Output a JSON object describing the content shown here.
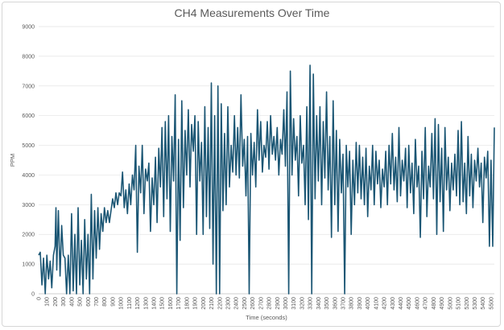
{
  "chart_data": {
    "type": "line",
    "title": "CH4 Measurements Over Time",
    "xlabel": "Time (seconds)",
    "ylabel": "PPM",
    "xlim": [
      0,
      5540
    ],
    "ylim": [
      0,
      9000
    ],
    "yticks": [
      0,
      1000,
      2000,
      3000,
      4000,
      5000,
      6000,
      7000,
      8000,
      9000
    ],
    "xticks": [
      0,
      100,
      200,
      300,
      400,
      500,
      600,
      700,
      800,
      900,
      1000,
      1100,
      1200,
      1300,
      1400,
      1500,
      1600,
      1700,
      1800,
      1900,
      2000,
      2100,
      2200,
      2300,
      2400,
      2500,
      2600,
      2700,
      2800,
      2900,
      3000,
      3100,
      3200,
      3300,
      3400,
      3500,
      3600,
      3700,
      3800,
      3900,
      4000,
      4100,
      4200,
      4300,
      4400,
      4500,
      4600,
      4700,
      4800,
      4900,
      5000,
      5100,
      5200,
      5300,
      5400,
      5500
    ],
    "grid": true,
    "legend": "none",
    "line_color": "#1b5674",
    "series": [
      {
        "values": [
          [
            0,
            1300
          ],
          [
            20,
            1400
          ],
          [
            40,
            300
          ],
          [
            60,
            1200
          ],
          [
            80,
            0
          ],
          [
            100,
            1300
          ],
          [
            120,
            500
          ],
          [
            140,
            1100
          ],
          [
            160,
            200
          ],
          [
            180,
            1300
          ],
          [
            200,
            1600
          ],
          [
            210,
            2900
          ],
          [
            220,
            800
          ],
          [
            240,
            2800
          ],
          [
            260,
            600
          ],
          [
            280,
            2300
          ],
          [
            300,
            1300
          ],
          [
            320,
            1200
          ],
          [
            340,
            0
          ],
          [
            360,
            1300
          ],
          [
            380,
            0
          ],
          [
            400,
            2700
          ],
          [
            420,
            100
          ],
          [
            440,
            2000
          ],
          [
            460,
            0
          ],
          [
            480,
            2900
          ],
          [
            500,
            300
          ],
          [
            520,
            1800
          ],
          [
            540,
            0
          ],
          [
            560,
            2500
          ],
          [
            580,
            500
          ],
          [
            600,
            2000
          ],
          [
            620,
            0
          ],
          [
            640,
            3350
          ],
          [
            660,
            500
          ],
          [
            680,
            2800
          ],
          [
            700,
            1200
          ],
          [
            720,
            2900
          ],
          [
            740,
            1500
          ],
          [
            760,
            2700
          ],
          [
            780,
            2100
          ],
          [
            800,
            2900
          ],
          [
            820,
            2400
          ],
          [
            840,
            2800
          ],
          [
            860,
            2400
          ],
          [
            880,
            2800
          ],
          [
            900,
            3200
          ],
          [
            920,
            2900
          ],
          [
            940,
            3400
          ],
          [
            960,
            3000
          ],
          [
            980,
            3400
          ],
          [
            1000,
            3300
          ],
          [
            1020,
            4100
          ],
          [
            1040,
            2900
          ],
          [
            1060,
            3500
          ],
          [
            1080,
            2700
          ],
          [
            1100,
            3700
          ],
          [
            1120,
            3000
          ],
          [
            1140,
            4000
          ],
          [
            1160,
            3500
          ],
          [
            1180,
            5000
          ],
          [
            1200,
            1400
          ],
          [
            1220,
            4300
          ],
          [
            1240,
            3400
          ],
          [
            1260,
            5000
          ],
          [
            1280,
            2700
          ],
          [
            1300,
            4200
          ],
          [
            1320,
            3800
          ],
          [
            1340,
            4400
          ],
          [
            1360,
            2100
          ],
          [
            1380,
            3900
          ],
          [
            1400,
            3000
          ],
          [
            1420,
            4600
          ],
          [
            1440,
            2400
          ],
          [
            1460,
            4900
          ],
          [
            1480,
            3600
          ],
          [
            1500,
            5600
          ],
          [
            1520,
            2600
          ],
          [
            1540,
            5800
          ],
          [
            1560,
            3200
          ],
          [
            1580,
            6000
          ],
          [
            1600,
            2100
          ],
          [
            1620,
            5300
          ],
          [
            1640,
            3800
          ],
          [
            1660,
            6700
          ],
          [
            1680,
            0
          ],
          [
            1700,
            5200
          ],
          [
            1720,
            1800
          ],
          [
            1740,
            6500
          ],
          [
            1760,
            2900
          ],
          [
            1780,
            5500
          ],
          [
            1800,
            4000
          ],
          [
            1820,
            6200
          ],
          [
            1840,
            3600
          ],
          [
            1860,
            5700
          ],
          [
            1880,
            4800
          ],
          [
            1900,
            6000
          ],
          [
            1920,
            2000
          ],
          [
            1940,
            5800
          ],
          [
            1960,
            3800
          ],
          [
            1980,
            5100
          ],
          [
            2000,
            2000
          ],
          [
            2020,
            6300
          ],
          [
            2040,
            2600
          ],
          [
            2060,
            5600
          ],
          [
            2080,
            2200
          ],
          [
            2100,
            7100
          ],
          [
            2120,
            1000
          ],
          [
            2140,
            6000
          ],
          [
            2160,
            0
          ],
          [
            2180,
            7000
          ],
          [
            2200,
            0
          ],
          [
            2220,
            6400
          ],
          [
            2240,
            2800
          ],
          [
            2260,
            5400
          ],
          [
            2280,
            3000
          ],
          [
            2300,
            6300
          ],
          [
            2320,
            3600
          ],
          [
            2340,
            5000
          ],
          [
            2360,
            4100
          ],
          [
            2380,
            6000
          ],
          [
            2400,
            4000
          ],
          [
            2420,
            5600
          ],
          [
            2440,
            3900
          ],
          [
            2460,
            6700
          ],
          [
            2480,
            4300
          ],
          [
            2500,
            5200
          ],
          [
            2520,
            3300
          ],
          [
            2540,
            5300
          ],
          [
            2560,
            0
          ],
          [
            2580,
            5400
          ],
          [
            2600,
            4000
          ],
          [
            2620,
            5100
          ],
          [
            2640,
            3600
          ],
          [
            2660,
            6200
          ],
          [
            2680,
            4500
          ],
          [
            2700,
            5800
          ],
          [
            2720,
            4100
          ],
          [
            2740,
            5000
          ],
          [
            2760,
            4600
          ],
          [
            2780,
            5800
          ],
          [
            2800,
            4200
          ],
          [
            2820,
            6000
          ],
          [
            2840,
            4700
          ],
          [
            2860,
            5300
          ],
          [
            2880,
            4500
          ],
          [
            2900,
            5600
          ],
          [
            2920,
            4000
          ],
          [
            2940,
            5200
          ],
          [
            2960,
            4700
          ],
          [
            2980,
            6200
          ],
          [
            3000,
            4300
          ],
          [
            3020,
            6800
          ],
          [
            3040,
            0
          ],
          [
            3060,
            7500
          ],
          [
            3080,
            4000
          ],
          [
            3100,
            5900
          ],
          [
            3120,
            4500
          ],
          [
            3140,
            5300
          ],
          [
            3160,
            3300
          ],
          [
            3180,
            6000
          ],
          [
            3200,
            4400
          ],
          [
            3220,
            5000
          ],
          [
            3240,
            3000
          ],
          [
            3260,
            6300
          ],
          [
            3280,
            2500
          ],
          [
            3300,
            7700
          ],
          [
            3320,
            0
          ],
          [
            3340,
            7400
          ],
          [
            3360,
            3200
          ],
          [
            3380,
            6000
          ],
          [
            3400,
            3800
          ],
          [
            3420,
            6300
          ],
          [
            3440,
            3000
          ],
          [
            3460,
            5800
          ],
          [
            3480,
            3900
          ],
          [
            3500,
            6800
          ],
          [
            3520,
            3500
          ],
          [
            3540,
            5300
          ],
          [
            3560,
            1900
          ],
          [
            3580,
            6500
          ],
          [
            3600,
            3000
          ],
          [
            3620,
            5500
          ],
          [
            3640,
            2100
          ],
          [
            3660,
            5200
          ],
          [
            3680,
            3400
          ],
          [
            3700,
            4700
          ],
          [
            3720,
            0
          ],
          [
            3740,
            5000
          ],
          [
            3760,
            3600
          ],
          [
            3780,
            4800
          ],
          [
            3800,
            2000
          ],
          [
            3820,
            4500
          ],
          [
            3840,
            3000
          ],
          [
            3860,
            5100
          ],
          [
            3880,
            3400
          ],
          [
            3900,
            5000
          ],
          [
            3920,
            3200
          ],
          [
            3940,
            4600
          ],
          [
            3960,
            3000
          ],
          [
            3980,
            4900
          ],
          [
            4000,
            2600
          ],
          [
            4020,
            4300
          ],
          [
            4040,
            3500
          ],
          [
            4060,
            5000
          ],
          [
            4080,
            3000
          ],
          [
            4100,
            4800
          ],
          [
            4120,
            3700
          ],
          [
            4140,
            4500
          ],
          [
            4160,
            2900
          ],
          [
            4180,
            4200
          ],
          [
            4200,
            3600
          ],
          [
            4220,
            4800
          ],
          [
            4240,
            3000
          ],
          [
            4260,
            5000
          ],
          [
            4280,
            3700
          ],
          [
            4300,
            5400
          ],
          [
            4320,
            3500
          ],
          [
            4340,
            4600
          ],
          [
            4360,
            3100
          ],
          [
            4380,
            5600
          ],
          [
            4400,
            3300
          ],
          [
            4420,
            4500
          ],
          [
            4440,
            3800
          ],
          [
            4460,
            4900
          ],
          [
            4480,
            2900
          ],
          [
            4500,
            5000
          ],
          [
            4520,
            3400
          ],
          [
            4540,
            4400
          ],
          [
            4560,
            2700
          ],
          [
            4580,
            5200
          ],
          [
            4600,
            3600
          ],
          [
            4620,
            4300
          ],
          [
            4640,
            1900
          ],
          [
            4660,
            4800
          ],
          [
            4680,
            3200
          ],
          [
            4700,
            5600
          ],
          [
            4720,
            2600
          ],
          [
            4740,
            4300
          ],
          [
            4760,
            3600
          ],
          [
            4780,
            5400
          ],
          [
            4800,
            3200
          ],
          [
            4820,
            5900
          ],
          [
            4840,
            2000
          ],
          [
            4860,
            5700
          ],
          [
            4880,
            3100
          ],
          [
            4900,
            4900
          ],
          [
            4920,
            2100
          ],
          [
            4940,
            5600
          ],
          [
            4960,
            3500
          ],
          [
            4980,
            4600
          ],
          [
            5000,
            2800
          ],
          [
            5020,
            4400
          ],
          [
            5040,
            3500
          ],
          [
            5060,
            4700
          ],
          [
            5080,
            3300
          ],
          [
            5100,
            5500
          ],
          [
            5120,
            3000
          ],
          [
            5140,
            5800
          ],
          [
            5160,
            3100
          ],
          [
            5180,
            4400
          ],
          [
            5200,
            2700
          ],
          [
            5220,
            5300
          ],
          [
            5240,
            3300
          ],
          [
            5260,
            4700
          ],
          [
            5280,
            2900
          ],
          [
            5300,
            4500
          ],
          [
            5320,
            3800
          ],
          [
            5340,
            4900
          ],
          [
            5360,
            3600
          ],
          [
            5380,
            4400
          ],
          [
            5400,
            2400
          ],
          [
            5420,
            4600
          ],
          [
            5440,
            3900
          ],
          [
            5460,
            4800
          ],
          [
            5480,
            1600
          ],
          [
            5500,
            4500
          ],
          [
            5520,
            1600
          ],
          [
            5540,
            5600
          ]
        ]
      }
    ]
  }
}
